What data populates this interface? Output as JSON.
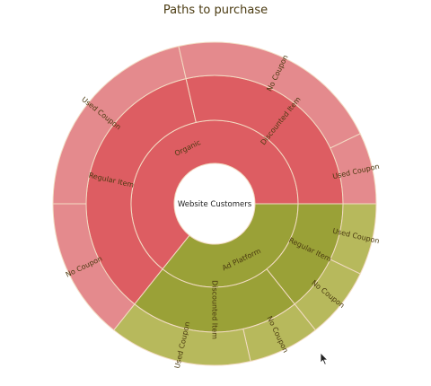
{
  "chart_data": {
    "type": "sunburst",
    "title": "Paths to purchase",
    "center_label": "Website Customers",
    "colors": {
      "red_ring1": "#dd5d62",
      "red_ring2": "#dd5d62",
      "red_ring3": "#e48a8d",
      "olive_ring1": "#9aa137",
      "olive_ring2": "#9aa137",
      "olive_ring3": "#b7b95c",
      "segment_stroke": "#f3dcc4",
      "label_text": "#4a3a10"
    },
    "hierarchy": [
      {
        "name": "Organic",
        "color_group": "red",
        "children": [
          {
            "name": "Regular Item",
            "children": [
              {
                "name": "No Coupon",
                "value": 2
              },
              {
                "name": "Used Coupon",
                "value": 3
              }
            ]
          },
          {
            "name": "Discounted Item",
            "children": [
              {
                "name": "No Coupon",
                "value": 3
              },
              {
                "name": "Used Coupon",
                "value": 1
              }
            ]
          }
        ]
      },
      {
        "name": "Ad Platform",
        "color_group": "olive",
        "children": [
          {
            "name": "Regular Item",
            "children": [
              {
                "name": "Used Coupon",
                "value": 1
              },
              {
                "name": "No Coupon",
                "value": 1
              }
            ]
          },
          {
            "name": "Discounted Item",
            "children": [
              {
                "name": "No Coupon",
                "value": 1
              },
              {
                "name": "Used Coupon",
                "value": 2
              }
            ]
          }
        ]
      }
    ]
  }
}
